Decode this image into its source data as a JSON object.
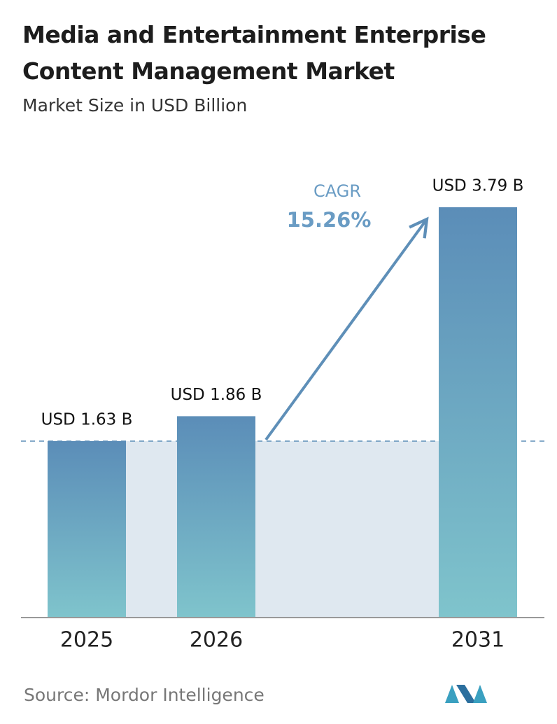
{
  "chart_data": {
    "type": "bar",
    "title": "Media and Entertainment Enterprise Content Management Market",
    "subtitle": "Market Size in USD Billion",
    "categories": [
      "2025",
      "2026",
      "2031"
    ],
    "values": [
      1.63,
      1.86,
      3.79
    ],
    "value_labels": [
      "USD 1.63 B",
      "USD 1.86 B",
      "USD 3.79 B"
    ],
    "annotation": {
      "label": "CAGR",
      "value": "15.26%"
    },
    "source": "Source:  Mordor Intelligence"
  }
}
